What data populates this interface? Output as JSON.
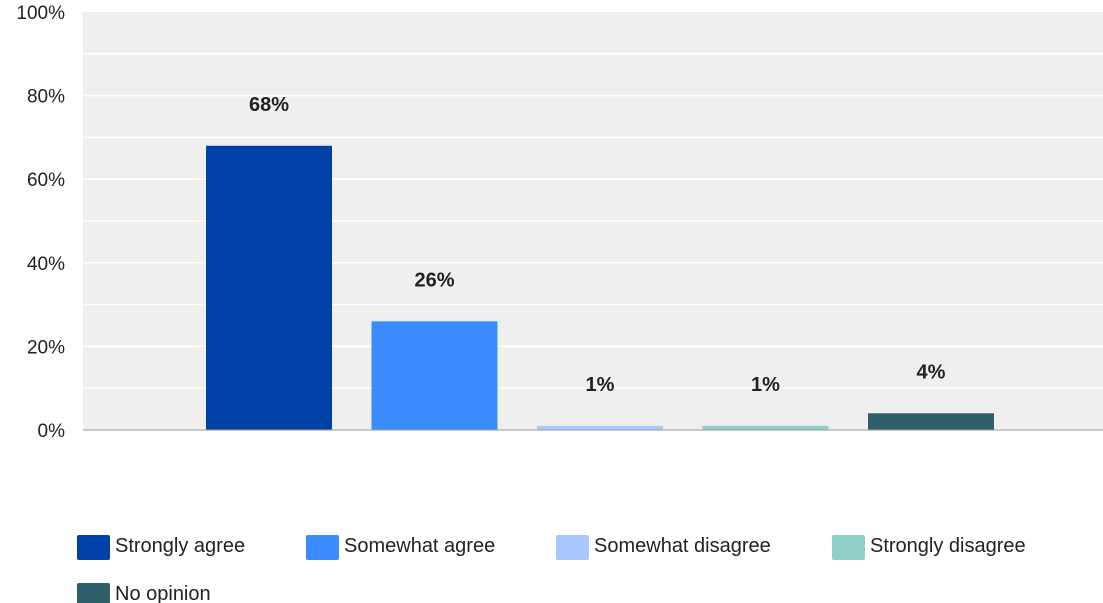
{
  "chart_data": {
    "type": "bar",
    "categories": [
      "Strongly agree",
      "Somewhat agree",
      "Somewhat disagree",
      "Strongly disagree",
      "No opinion"
    ],
    "values": [
      68,
      26,
      1,
      1,
      4
    ],
    "data_labels": [
      "68%",
      "26%",
      "1%",
      "1%",
      "4%"
    ],
    "colors": [
      "#0041a8",
      "#3a8cff",
      "#a9c8ff",
      "#8ecfc7",
      "#2e5f6b"
    ],
    "ylim": [
      0,
      100
    ],
    "yticks": [
      0,
      20,
      40,
      60,
      80,
      100
    ],
    "ytick_labels": [
      "0%",
      "20%",
      "40%",
      "60%",
      "80%",
      "100%"
    ],
    "grid": true,
    "legend": {
      "position": "bottom",
      "entries": [
        "Strongly agree",
        "Somewhat agree",
        "Somewhat disagree",
        "Strongly disagree",
        "No opinion"
      ]
    },
    "plot_background": "#efefef"
  }
}
